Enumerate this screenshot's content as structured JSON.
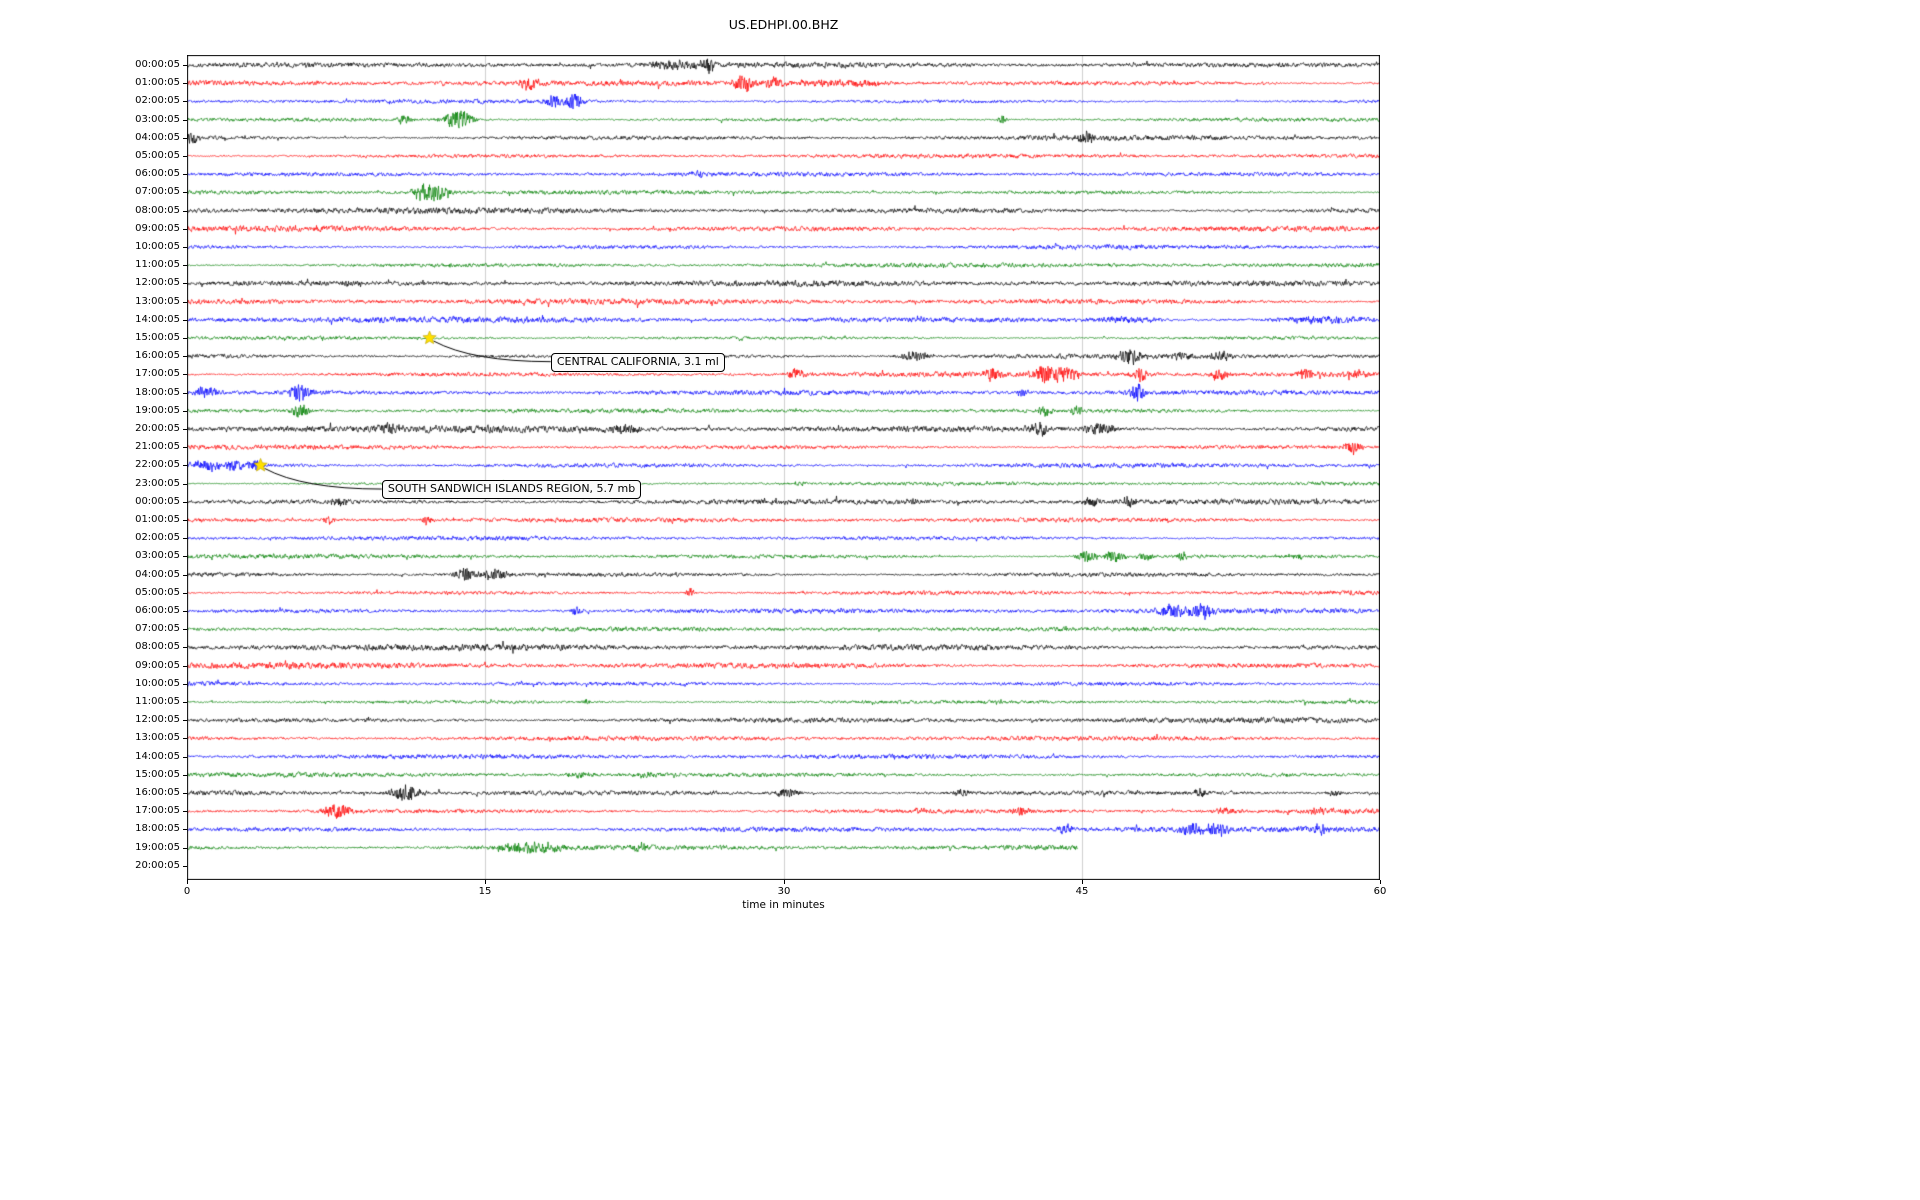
{
  "chart_data": {
    "type": "line",
    "title": "US.EDHPI.00.BHZ",
    "xlabel": "time in minutes",
    "xlim": [
      0,
      60
    ],
    "x_ticks": [
      "0",
      "15",
      "30",
      "45",
      "60"
    ],
    "grid": "vertical-gridlines-at-15-30-45",
    "legend": "none",
    "trace_color_cycle": [
      "#000000",
      "#ff0000",
      "#0000ff",
      "#008000"
    ],
    "marker_color": "#ffe000",
    "rows": [
      {
        "label": "00:00:05",
        "color": "#000000",
        "noise": 1.5,
        "events": [
          {
            "x": 24.5,
            "a": 5,
            "w": 0.8
          },
          {
            "x": 26.2,
            "a": 9,
            "w": 0.25
          }
        ]
      },
      {
        "label": "01:00:05",
        "color": "#ff0000",
        "noise": 1.5,
        "events": [
          {
            "x": 17.2,
            "a": 8,
            "w": 0.3
          },
          {
            "x": 28.0,
            "a": 10,
            "w": 0.4
          },
          {
            "x": 29.5,
            "a": 7,
            "w": 0.3
          },
          {
            "x": 33.0,
            "a": 3.5,
            "w": 2.0
          }
        ]
      },
      {
        "label": "02:00:05",
        "color": "#0000ff",
        "noise": 1.2,
        "events": [
          {
            "x": 18.4,
            "a": 7,
            "w": 0.3
          },
          {
            "x": 19.4,
            "a": 8,
            "w": 0.35
          }
        ]
      },
      {
        "label": "03:00:05",
        "color": "#008000",
        "noise": 1.2,
        "events": [
          {
            "x": 10.9,
            "a": 5,
            "w": 0.25
          },
          {
            "x": 13.6,
            "a": 11,
            "w": 0.5
          },
          {
            "x": 41.0,
            "a": 5,
            "w": 0.15
          }
        ]
      },
      {
        "label": "04:00:05",
        "color": "#000000",
        "noise": 1.5,
        "events": [
          {
            "x": 0.3,
            "a": 6,
            "w": 0.2
          },
          {
            "x": 45.2,
            "a": 6,
            "w": 0.35
          }
        ]
      },
      {
        "label": "05:00:05",
        "color": "#ff0000",
        "noise": 1.2,
        "events": []
      },
      {
        "label": "06:00:05",
        "color": "#0000ff",
        "noise": 1.2,
        "events": [
          {
            "x": 25.7,
            "a": 4,
            "w": 0.3
          }
        ]
      },
      {
        "label": "07:00:05",
        "color": "#008000",
        "noise": 1.2,
        "events": [
          {
            "x": 11.7,
            "a": 5,
            "w": 0.3
          },
          {
            "x": 12.4,
            "a": 10,
            "w": 0.6
          }
        ]
      },
      {
        "label": "08:00:05",
        "color": "#000000",
        "noise": 1.8,
        "events": []
      },
      {
        "label": "09:00:05",
        "color": "#ff0000",
        "noise": 1.8,
        "events": []
      },
      {
        "label": "10:00:05",
        "color": "#0000ff",
        "noise": 1.4,
        "events": []
      },
      {
        "label": "11:00:05",
        "color": "#008000",
        "noise": 1.3,
        "events": []
      },
      {
        "label": "12:00:05",
        "color": "#000000",
        "noise": 1.6,
        "events": [
          {
            "x": 8.0,
            "a": 4,
            "w": 0.1
          }
        ]
      },
      {
        "label": "13:00:05",
        "color": "#ff0000",
        "noise": 1.6,
        "events": []
      },
      {
        "label": "14:00:05",
        "color": "#0000ff",
        "noise": 1.8,
        "events": [
          {
            "x": 47.0,
            "a": 3,
            "w": 1.5
          },
          {
            "x": 57.0,
            "a": 3.5,
            "w": 1.5
          }
        ]
      },
      {
        "label": "15:00:05",
        "color": "#008000",
        "noise": 1.1,
        "events": []
      },
      {
        "label": "16:00:05",
        "color": "#000000",
        "noise": 1.6,
        "events": [
          {
            "x": 36.6,
            "a": 5,
            "w": 0.5
          },
          {
            "x": 47.4,
            "a": 9,
            "w": 0.4
          },
          {
            "x": 50.0,
            "a": 6,
            "w": 0.3
          },
          {
            "x": 52.0,
            "a": 5,
            "w": 0.4
          }
        ]
      },
      {
        "label": "17:00:05",
        "color": "#ff0000",
        "noise": 1.5,
        "events": [
          {
            "x": 30.6,
            "a": 6,
            "w": 0.3
          },
          {
            "x": 40.5,
            "a": 6,
            "w": 0.3
          },
          {
            "x": 43.2,
            "a": 10,
            "w": 0.5
          },
          {
            "x": 44.3,
            "a": 9,
            "w": 0.4
          },
          {
            "x": 48.0,
            "a": 8,
            "w": 0.3
          },
          {
            "x": 51.9,
            "a": 6,
            "w": 0.3
          },
          {
            "x": 56.3,
            "a": 6,
            "w": 0.3
          },
          {
            "x": 58.9,
            "a": 4,
            "w": 0.3
          }
        ]
      },
      {
        "label": "18:00:05",
        "color": "#0000ff",
        "noise": 1.4,
        "events": [
          {
            "x": 1.0,
            "a": 6,
            "w": 0.4
          },
          {
            "x": 5.7,
            "a": 10,
            "w": 0.4
          },
          {
            "x": 42.0,
            "a": 4,
            "w": 0.2
          },
          {
            "x": 47.8,
            "a": 9,
            "w": 0.3
          }
        ]
      },
      {
        "label": "19:00:05",
        "color": "#008000",
        "noise": 1.2,
        "events": [
          {
            "x": 5.7,
            "a": 7,
            "w": 0.3
          },
          {
            "x": 43.2,
            "a": 6,
            "w": 0.25
          },
          {
            "x": 44.7,
            "a": 5,
            "w": 0.2
          }
        ]
      },
      {
        "label": "20:00:05",
        "color": "#000000",
        "noise": 2.0,
        "events": [
          {
            "x": 10.2,
            "a": 5,
            "w": 0.3
          },
          {
            "x": 21.9,
            "a": 5,
            "w": 0.6
          },
          {
            "x": 42.9,
            "a": 7,
            "w": 0.4
          },
          {
            "x": 45.9,
            "a": 7,
            "w": 0.5
          }
        ]
      },
      {
        "label": "21:00:05",
        "color": "#ff0000",
        "noise": 1.4,
        "events": [
          {
            "x": 58.6,
            "a": 7,
            "w": 0.3
          }
        ]
      },
      {
        "label": "22:00:05",
        "color": "#0000ff",
        "noise": 1.6,
        "events": [
          {
            "x": 1.0,
            "a": 6,
            "w": 0.5
          },
          {
            "x": 2.4,
            "a": 7,
            "w": 0.3
          },
          {
            "x": 3.4,
            "a": 6,
            "w": 0.3
          }
        ]
      },
      {
        "label": "23:00:05",
        "color": "#008000",
        "noise": 1.1,
        "events": [
          {
            "x": 30.8,
            "a": 3,
            "w": 0.2
          }
        ]
      },
      {
        "label": "00:00:05",
        "color": "#000000",
        "noise": 1.5,
        "events": [
          {
            "x": 7.6,
            "a": 4,
            "w": 0.3
          },
          {
            "x": 36.5,
            "a": 3,
            "w": 0.2
          },
          {
            "x": 45.5,
            "a": 6,
            "w": 0.3
          },
          {
            "x": 47.4,
            "a": 6,
            "w": 0.3
          }
        ]
      },
      {
        "label": "01:00:05",
        "color": "#ff0000",
        "noise": 1.3,
        "events": [
          {
            "x": 7.1,
            "a": 5,
            "w": 0.2
          },
          {
            "x": 12.1,
            "a": 5,
            "w": 0.2
          }
        ]
      },
      {
        "label": "02:00:05",
        "color": "#0000ff",
        "noise": 1.2,
        "events": []
      },
      {
        "label": "03:00:05",
        "color": "#008000",
        "noise": 1.3,
        "events": [
          {
            "x": 45.3,
            "a": 6,
            "w": 0.4
          },
          {
            "x": 46.6,
            "a": 6,
            "w": 0.4
          },
          {
            "x": 48.2,
            "a": 5,
            "w": 0.3
          },
          {
            "x": 50.1,
            "a": 4,
            "w": 0.2
          },
          {
            "x": 55.9,
            "a": 3,
            "w": 0.2
          }
        ]
      },
      {
        "label": "04:00:05",
        "color": "#000000",
        "noise": 1.5,
        "events": [
          {
            "x": 14.0,
            "a": 7,
            "w": 0.4
          },
          {
            "x": 15.5,
            "a": 6,
            "w": 0.5
          }
        ]
      },
      {
        "label": "05:00:05",
        "color": "#ff0000",
        "noise": 1.3,
        "events": [
          {
            "x": 25.3,
            "a": 5,
            "w": 0.15
          }
        ]
      },
      {
        "label": "06:00:05",
        "color": "#0000ff",
        "noise": 1.4,
        "events": [
          {
            "x": 19.6,
            "a": 5,
            "w": 0.2
          },
          {
            "x": 49.5,
            "a": 7,
            "w": 0.5
          },
          {
            "x": 51.0,
            "a": 8,
            "w": 0.5
          }
        ]
      },
      {
        "label": "07:00:05",
        "color": "#008000",
        "noise": 1.2,
        "events": []
      },
      {
        "label": "08:00:05",
        "color": "#000000",
        "noise": 1.8,
        "events": []
      },
      {
        "label": "09:00:05",
        "color": "#ff0000",
        "noise": 1.8,
        "events": []
      },
      {
        "label": "10:00:05",
        "color": "#0000ff",
        "noise": 1.4,
        "events": []
      },
      {
        "label": "11:00:05",
        "color": "#008000",
        "noise": 1.2,
        "events": [
          {
            "x": 20.1,
            "a": 3,
            "w": 0.15
          }
        ]
      },
      {
        "label": "12:00:05",
        "color": "#000000",
        "noise": 1.5,
        "events": [
          {
            "x": 9.1,
            "a": 3,
            "w": 0.1
          }
        ]
      },
      {
        "label": "13:00:05",
        "color": "#ff0000",
        "noise": 1.3,
        "events": []
      },
      {
        "label": "14:00:05",
        "color": "#0000ff",
        "noise": 1.3,
        "events": []
      },
      {
        "label": "15:00:05",
        "color": "#008000",
        "noise": 1.3,
        "events": [
          {
            "x": 19.8,
            "a": 3,
            "w": 0.5
          },
          {
            "x": 23.0,
            "a": 3,
            "w": 0.4
          }
        ]
      },
      {
        "label": "16:00:05",
        "color": "#000000",
        "noise": 1.6,
        "events": [
          {
            "x": 11.0,
            "a": 9,
            "w": 0.5
          },
          {
            "x": 30.2,
            "a": 5,
            "w": 0.4
          },
          {
            "x": 39.0,
            "a": 4,
            "w": 0.3
          },
          {
            "x": 51.0,
            "a": 4,
            "w": 0.3
          },
          {
            "x": 57.7,
            "a": 3,
            "w": 0.3
          }
        ]
      },
      {
        "label": "17:00:05",
        "color": "#ff0000",
        "noise": 1.5,
        "events": [
          {
            "x": 7.6,
            "a": 8,
            "w": 0.5
          },
          {
            "x": 36.9,
            "a": 3,
            "w": 0.2
          },
          {
            "x": 42.0,
            "a": 4,
            "w": 0.3
          },
          {
            "x": 52.2,
            "a": 4,
            "w": 0.4
          },
          {
            "x": 57.0,
            "a": 4,
            "w": 0.4
          }
        ]
      },
      {
        "label": "18:00:05",
        "color": "#0000ff",
        "noise": 1.6,
        "events": [
          {
            "x": 44.2,
            "a": 5,
            "w": 0.3
          },
          {
            "x": 50.5,
            "a": 6,
            "w": 0.5
          },
          {
            "x": 51.8,
            "a": 6,
            "w": 0.4
          },
          {
            "x": 57.0,
            "a": 4,
            "w": 0.3
          }
        ]
      },
      {
        "label": "19:00:05",
        "color": "#008000",
        "noise": 1.4,
        "xmax": 44.8,
        "events": [
          {
            "x": 16.5,
            "a": 4,
            "w": 1.0
          },
          {
            "x": 18.0,
            "a": 4,
            "w": 0.8
          },
          {
            "x": 22.8,
            "a": 4,
            "w": 0.3
          }
        ]
      },
      {
        "label": "20:00:05",
        "color": null,
        "noise": 0,
        "events": []
      }
    ],
    "annotations": [
      {
        "text": "CENTRAL CALIFORNIA, 3.1 ml",
        "star": {
          "x_min": 12.2,
          "row": 15
        },
        "label_box": {
          "x_min": 18.3,
          "row": 16.3
        }
      },
      {
        "text": "SOUTH SANDWICH ISLANDS REGION, 5.7 mb",
        "star": {
          "x_min": 3.7,
          "row": 22
        },
        "label_box": {
          "x_min": 9.8,
          "row": 23.3
        }
      }
    ]
  }
}
